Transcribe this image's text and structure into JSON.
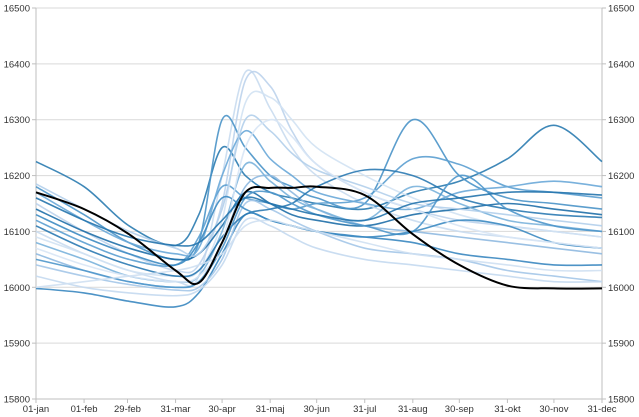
{
  "chart_data": {
    "type": "line",
    "title": "",
    "xlabel": "",
    "ylabel": "",
    "ylim": [
      15800,
      16500
    ],
    "xlim_days": [
      0,
      365
    ],
    "grid": true,
    "legend": "none",
    "y_ticks": [
      "15800",
      "15900",
      "16000",
      "16100",
      "16200",
      "16300",
      "16400",
      "16500"
    ],
    "y_tick_values": [
      15800,
      15900,
      16000,
      16100,
      16200,
      16300,
      16400,
      16500
    ],
    "x_tick_labels": [
      "01-jan",
      "01-feb",
      "29-feb",
      "31-mar",
      "30-apr",
      "31-maj",
      "30-jun",
      "31-jul",
      "31-aug",
      "30-sep",
      "31-okt",
      "30-nov",
      "31-dec"
    ],
    "x_tick_days": [
      0,
      31,
      59,
      90,
      120,
      151,
      181,
      212,
      243,
      273,
      304,
      334,
      365
    ],
    "x": [
      0,
      31,
      60,
      90,
      105,
      120,
      135,
      151,
      165,
      181,
      212,
      243,
      273,
      304,
      334,
      365
    ],
    "series": [
      {
        "name": "s1",
        "color": "#2a7bb0",
        "values": [
          16225,
          16180,
          16110,
          16075,
          16130,
          16250,
          16200,
          16170,
          16160,
          16150,
          16140,
          16170,
          16190,
          16230,
          16290,
          16225
        ]
      },
      {
        "name": "s2",
        "color": "#3a87c0",
        "values": [
          15998,
          15990,
          15975,
          15965,
          15990,
          16060,
          16130,
          16120,
          16110,
          16100,
          16090,
          16080,
          16060,
          16050,
          16040,
          16040
        ]
      },
      {
        "name": "s3",
        "color": "#c9dcf0",
        "values": [
          16100,
          16060,
          16030,
          16010,
          16020,
          16200,
          16385,
          16320,
          16250,
          16200,
          16150,
          16120,
          16100,
          16090,
          16080,
          16070
        ]
      },
      {
        "name": "s4",
        "color": "#bcd3ec",
        "values": [
          16150,
          16100,
          16060,
          16030,
          16040,
          16150,
          16370,
          16360,
          16280,
          16220,
          16170,
          16140,
          16120,
          16110,
          16100,
          16090
        ]
      },
      {
        "name": "s5",
        "color": "#4a93c8",
        "values": [
          16180,
          16130,
          16080,
          16050,
          16080,
          16300,
          16250,
          16200,
          16180,
          16160,
          16150,
          16300,
          16200,
          16160,
          16150,
          16140
        ]
      },
      {
        "name": "s6",
        "color": "#8fb9e0",
        "values": [
          16060,
          16030,
          16010,
          16000,
          16010,
          16080,
          16180,
          16200,
          16170,
          16140,
          16110,
          16100,
          16090,
          16080,
          16070,
          16060
        ]
      },
      {
        "name": "s7",
        "color": "#5b9fd0",
        "values": [
          16120,
          16080,
          16050,
          16040,
          16090,
          16180,
          16160,
          16150,
          16140,
          16150,
          16160,
          16230,
          16220,
          16180,
          16170,
          16160
        ]
      },
      {
        "name": "s8",
        "color": "#a4c6e8",
        "values": [
          16040,
          16020,
          16005,
          15995,
          16000,
          16050,
          16150,
          16140,
          16120,
          16100,
          16070,
          16060,
          16050,
          16030,
          16020,
          16010
        ]
      },
      {
        "name": "s9",
        "color": "#d2e2f3",
        "values": [
          16090,
          16060,
          16030,
          16020,
          16030,
          16120,
          16330,
          16340,
          16300,
          16250,
          16200,
          16160,
          16130,
          16110,
          16100,
          16090
        ]
      },
      {
        "name": "s10",
        "color": "#1f6fa8",
        "values": [
          16140,
          16100,
          16070,
          16050,
          16060,
          16110,
          16170,
          16150,
          16130,
          16120,
          16110,
          16130,
          16140,
          16150,
          16140,
          16130
        ]
      },
      {
        "name": "s11",
        "color": "#6aa9d8",
        "values": [
          16170,
          16120,
          16080,
          16060,
          16070,
          16200,
          16280,
          16230,
          16200,
          16170,
          16150,
          16140,
          16170,
          16180,
          16190,
          16180
        ]
      },
      {
        "name": "s12",
        "color": "#c4d9ef",
        "values": [
          16020,
          16000,
          15990,
          15985,
          15995,
          16040,
          16120,
          16110,
          16090,
          16070,
          16050,
          16040,
          16030,
          16020,
          16010,
          16010
        ]
      },
      {
        "name": "s13",
        "color": "#7ab2dc",
        "values": [
          16080,
          16050,
          16020,
          16010,
          16020,
          16100,
          16220,
          16190,
          16160,
          16140,
          16120,
          16180,
          16150,
          16120,
          16110,
          16100
        ]
      },
      {
        "name": "s14",
        "color": "#2b7ab3",
        "values": [
          16110,
          16070,
          16040,
          16020,
          16030,
          16090,
          16130,
          16140,
          16150,
          16180,
          16210,
          16200,
          16160,
          16140,
          16130,
          16125
        ]
      },
      {
        "name": "s15",
        "color": "#b3cfeb",
        "values": [
          16185,
          16140,
          16100,
          16070,
          16060,
          16140,
          16300,
          16280,
          16240,
          16210,
          16180,
          16150,
          16140,
          16130,
          16120,
          16110
        ]
      },
      {
        "name": "s16",
        "color": "#4f97cb",
        "values": [
          16050,
          16030,
          16010,
          16000,
          16010,
          16070,
          16160,
          16170,
          16150,
          16130,
          16110,
          16100,
          16200,
          16140,
          16110,
          16100
        ]
      },
      {
        "name": "s17",
        "color": "#3d8bc2",
        "values": [
          16130,
          16090,
          16060,
          16040,
          16080,
          16160,
          16140,
          16120,
          16110,
          16100,
          16090,
          16100,
          16120,
          16110,
          16080,
          16070
        ]
      },
      {
        "name": "s18",
        "color": "#d8e6f5",
        "values": [
          16070,
          16040,
          16020,
          16010,
          16020,
          16080,
          16250,
          16300,
          16270,
          16220,
          16170,
          16140,
          16110,
          16090,
          16080,
          16070
        ]
      },
      {
        "name": "s19",
        "color": "#2574ad",
        "values": [
          16160,
          16120,
          16090,
          16075,
          16080,
          16120,
          16160,
          16150,
          16140,
          16130,
          16120,
          16150,
          16160,
          16170,
          16170,
          16165
        ]
      },
      {
        "name": "s20",
        "color": "#cfe0f2",
        "values": [
          16000,
          16010,
          16020,
          16030,
          16040,
          16060,
          16110,
          16120,
          16110,
          16100,
          16080,
          16060,
          16050,
          16040,
          16030,
          16030
        ]
      },
      {
        "name": "highlight",
        "color": "#000000",
        "values": [
          16170,
          16140,
          16095,
          16030,
          16008,
          16080,
          16170,
          16178,
          16178,
          16180,
          16165,
          16095,
          16040,
          16003,
          15998,
          15998
        ]
      }
    ]
  }
}
